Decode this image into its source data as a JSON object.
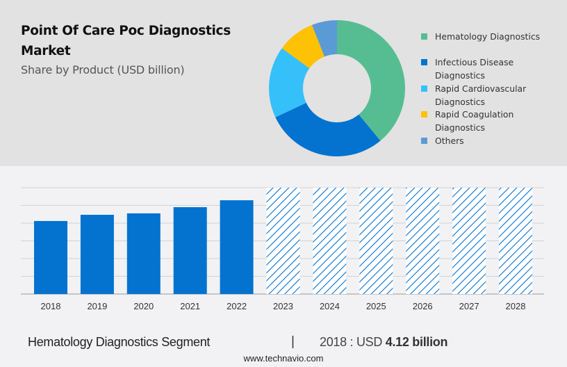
{
  "header": {
    "title": "Point Of Care Poc Diagnostics Market",
    "subtitle": "Share by Product (USD billion)"
  },
  "chart_data": [
    {
      "type": "pie",
      "variant": "donut",
      "title": "Share by Product (USD billion)",
      "legend_position": "right",
      "slices": [
        {
          "label": "Hematology Diagnostics",
          "value": 39,
          "color": "#56bd93"
        },
        {
          "label": "Infectious Disease Diagnostics",
          "value": 29,
          "color": "#0373cf"
        },
        {
          "label": "Rapid Cardiovascular Diagnostics",
          "value": 17,
          "color": "#36c0f9"
        },
        {
          "label": "Rapid Coagulation Diagnostics",
          "value": 9,
          "color": "#fdc105"
        },
        {
          "label": "Others",
          "value": 6,
          "color": "#5b9bd5"
        }
      ]
    },
    {
      "type": "bar",
      "title": "Hematology Diagnostics Segment",
      "categories": [
        "2018",
        "2019",
        "2020",
        "2021",
        "2022",
        "2023",
        "2024",
        "2025",
        "2026",
        "2027",
        "2028"
      ],
      "values": [
        4.12,
        4.47,
        4.55,
        4.9,
        5.29,
        null,
        null,
        null,
        null,
        null,
        null
      ],
      "forecast_categories": [
        "2023",
        "2024",
        "2025",
        "2026",
        "2027",
        "2028"
      ],
      "forecast_style": "hatched",
      "ylim": [
        0,
        6
      ],
      "grid": true,
      "xlabel": "",
      "ylabel": "",
      "bar_color": "#0373cf"
    }
  ],
  "footer": {
    "segment": "Hematology Diagnostics Segment",
    "separator": "|",
    "value_prefix": "2018 : USD ",
    "value_bold": "4.12 billion",
    "url": "www.technavio.com"
  }
}
